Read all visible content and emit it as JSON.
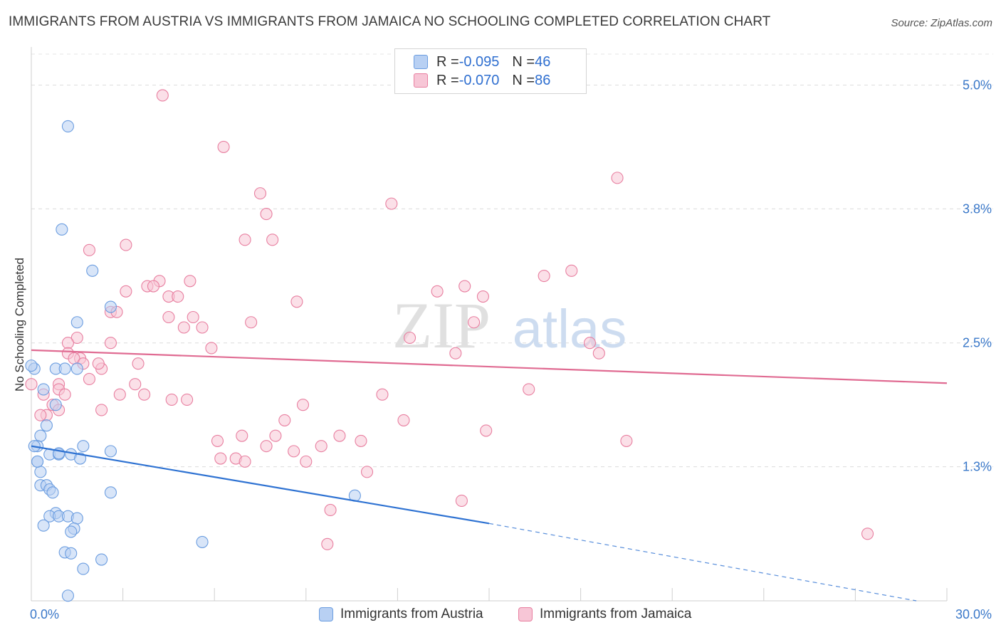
{
  "title": "IMMIGRANTS FROM AUSTRIA VS IMMIGRANTS FROM JAMAICA NO SCHOOLING COMPLETED CORRELATION CHART",
  "source": "Source: ZipAtlas.com",
  "watermark": {
    "zip": "ZIP",
    "atlas": "atlas"
  },
  "colors": {
    "austria": "#6b9de0",
    "austria_fill": "#b8d0f3",
    "jamaica": "#e87fa0",
    "jamaica_fill": "#f7c6d6",
    "austria_line": "#2e72d2",
    "jamaica_line": "#e06b92",
    "tick_label": "#3a78c9"
  },
  "legend": {
    "austria": {
      "r_label": "R = ",
      "r_value": "-0.095",
      "n_label": "N = ",
      "n_value": "46"
    },
    "jamaica": {
      "r_label": "R = ",
      "r_value": "-0.070",
      "n_label": "N = ",
      "n_value": "86"
    }
  },
  "chart_data": {
    "type": "scatter",
    "ylabel": "No Schooling Completed",
    "xlim": [
      0,
      30
    ],
    "ylim": [
      0,
      5.3
    ],
    "x_tick_labels": [
      {
        "value": 0,
        "label": "0.0%"
      },
      {
        "value": 30,
        "label": "30.0%"
      }
    ],
    "y_tick_labels": [
      {
        "value": 1.3,
        "label": "1.3%"
      },
      {
        "value": 2.5,
        "label": "2.5%"
      },
      {
        "value": 3.8,
        "label": "3.8%"
      },
      {
        "value": 5.0,
        "label": "5.0%"
      }
    ],
    "x_minor_ticks": [
      3,
      6,
      9,
      12,
      15,
      18,
      21,
      24,
      27,
      30
    ],
    "grid": "dashed horizontal",
    "legend_position": "top-center and bottom",
    "series": [
      {
        "name": "Immigrants from Austria",
        "points": [
          [
            1.2,
            4.6
          ],
          [
            1.0,
            3.6
          ],
          [
            2.0,
            3.2
          ],
          [
            2.6,
            2.85
          ],
          [
            1.5,
            2.7
          ],
          [
            0.1,
            2.25
          ],
          [
            0.8,
            2.25
          ],
          [
            1.1,
            2.25
          ],
          [
            0.4,
            2.05
          ],
          [
            0.8,
            1.9
          ],
          [
            0.5,
            1.7
          ],
          [
            0.3,
            1.6
          ],
          [
            0.2,
            1.5
          ],
          [
            1.7,
            1.5
          ],
          [
            2.6,
            1.45
          ],
          [
            0.6,
            1.42
          ],
          [
            0.9,
            1.42
          ],
          [
            1.3,
            1.42
          ],
          [
            1.6,
            1.38
          ],
          [
            0.2,
            1.35
          ],
          [
            0.3,
            1.25
          ],
          [
            0.3,
            1.12
          ],
          [
            0.5,
            1.12
          ],
          [
            0.6,
            1.08
          ],
          [
            0.7,
            1.05
          ],
          [
            2.6,
            1.05
          ],
          [
            10.6,
            1.02
          ],
          [
            0.8,
            0.85
          ],
          [
            0.6,
            0.82
          ],
          [
            0.9,
            0.82
          ],
          [
            1.2,
            0.82
          ],
          [
            1.5,
            0.8
          ],
          [
            0.4,
            0.73
          ],
          [
            1.4,
            0.7
          ],
          [
            1.3,
            0.67
          ],
          [
            5.6,
            0.57
          ],
          [
            1.1,
            0.47
          ],
          [
            1.3,
            0.46
          ],
          [
            2.3,
            0.4
          ],
          [
            1.7,
            0.31
          ],
          [
            1.2,
            0.05
          ],
          [
            0.0,
            2.28
          ],
          [
            0.1,
            1.5
          ],
          [
            0.2,
            1.35
          ],
          [
            1.5,
            2.25
          ],
          [
            0.9,
            1.43
          ]
        ]
      },
      {
        "name": "Immigrants from Jamaica",
        "points": [
          [
            4.3,
            4.9
          ],
          [
            6.3,
            4.4
          ],
          [
            7.5,
            3.95
          ],
          [
            7.7,
            3.75
          ],
          [
            11.8,
            3.85
          ],
          [
            19.2,
            4.1
          ],
          [
            7.0,
            3.5
          ],
          [
            7.9,
            3.5
          ],
          [
            3.1,
            3.45
          ],
          [
            1.9,
            3.4
          ],
          [
            3.1,
            3.0
          ],
          [
            3.8,
            3.05
          ],
          [
            4.2,
            3.1
          ],
          [
            4.0,
            3.05
          ],
          [
            5.2,
            3.1
          ],
          [
            4.5,
            2.95
          ],
          [
            4.8,
            2.95
          ],
          [
            13.3,
            3.0
          ],
          [
            14.2,
            3.05
          ],
          [
            14.8,
            2.95
          ],
          [
            16.8,
            3.15
          ],
          [
            17.7,
            3.2
          ],
          [
            8.7,
            2.9
          ],
          [
            2.6,
            2.8
          ],
          [
            2.8,
            2.8
          ],
          [
            4.5,
            2.75
          ],
          [
            5.3,
            2.75
          ],
          [
            5.6,
            2.65
          ],
          [
            5.0,
            2.65
          ],
          [
            7.2,
            2.7
          ],
          [
            14.5,
            2.7
          ],
          [
            1.5,
            2.55
          ],
          [
            1.2,
            2.5
          ],
          [
            2.6,
            2.5
          ],
          [
            5.9,
            2.45
          ],
          [
            12.4,
            2.55
          ],
          [
            13.9,
            2.4
          ],
          [
            18.3,
            2.5
          ],
          [
            18.6,
            2.4
          ],
          [
            1.2,
            2.4
          ],
          [
            1.6,
            2.35
          ],
          [
            1.4,
            2.35
          ],
          [
            3.5,
            2.3
          ],
          [
            1.7,
            2.3
          ],
          [
            2.3,
            2.25
          ],
          [
            2.2,
            2.3
          ],
          [
            1.9,
            2.15
          ],
          [
            0.9,
            2.1
          ],
          [
            0.9,
            2.05
          ],
          [
            3.4,
            2.1
          ],
          [
            3.7,
            2.0
          ],
          [
            11.5,
            2.0
          ],
          [
            16.3,
            2.05
          ],
          [
            1.1,
            2.0
          ],
          [
            2.9,
            2.0
          ],
          [
            4.6,
            1.95
          ],
          [
            5.1,
            1.95
          ],
          [
            8.9,
            1.9
          ],
          [
            0.7,
            1.9
          ],
          [
            0.9,
            1.85
          ],
          [
            2.3,
            1.85
          ],
          [
            0.5,
            1.8
          ],
          [
            8.3,
            1.75
          ],
          [
            12.2,
            1.75
          ],
          [
            14.9,
            1.65
          ],
          [
            0.0,
            2.1
          ],
          [
            6.9,
            1.6
          ],
          [
            8.0,
            1.6
          ],
          [
            10.1,
            1.6
          ],
          [
            10.8,
            1.55
          ],
          [
            6.1,
            1.55
          ],
          [
            19.5,
            1.55
          ],
          [
            7.7,
            1.5
          ],
          [
            9.5,
            1.5
          ],
          [
            8.6,
            1.45
          ],
          [
            6.2,
            1.38
          ],
          [
            6.7,
            1.38
          ],
          [
            7.0,
            1.35
          ],
          [
            9.0,
            1.35
          ],
          [
            11.0,
            1.25
          ],
          [
            14.1,
            0.97
          ],
          [
            9.8,
            0.88
          ],
          [
            9.7,
            0.55
          ],
          [
            27.4,
            0.65
          ],
          [
            0.3,
            1.8
          ],
          [
            0.4,
            2.0
          ]
        ]
      }
    ],
    "trend_lines": [
      {
        "series": "Immigrants from Austria",
        "x": [
          0,
          15
        ],
        "y": [
          1.5,
          0.75
        ],
        "dashed_extension": {
          "x": [
            15,
            29
          ],
          "y": [
            0.75,
            0.0
          ]
        }
      },
      {
        "series": "Immigrants from Jamaica",
        "x": [
          0,
          30
        ],
        "y": [
          2.43,
          2.11
        ]
      }
    ]
  }
}
